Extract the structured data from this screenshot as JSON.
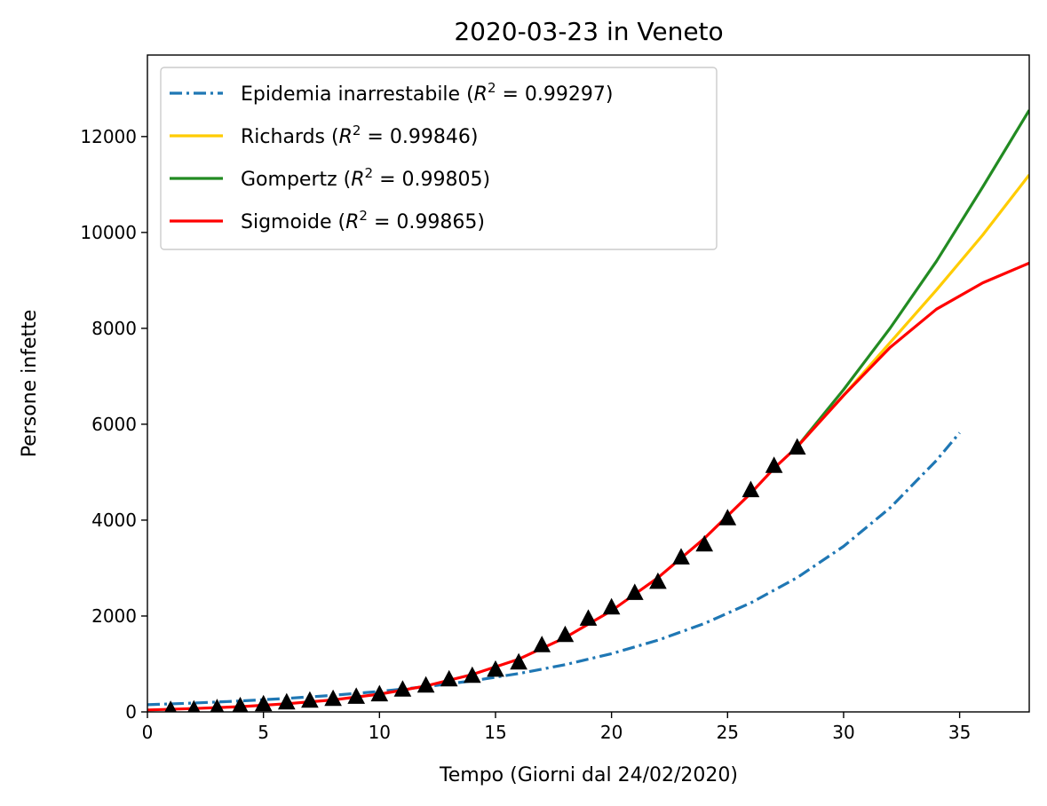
{
  "chart_data": {
    "type": "line",
    "title": "2020-03-23 in Veneto",
    "xlabel": "Tempo (Giorni dal 24/02/2020)",
    "ylabel": "Persone infette",
    "xlim": [
      0,
      38
    ],
    "ylim": [
      0,
      13700
    ],
    "xticks": [
      0,
      5,
      10,
      15,
      20,
      25,
      30,
      35
    ],
    "yticks": [
      0,
      2000,
      4000,
      6000,
      8000,
      10000,
      12000
    ],
    "grid": false,
    "legend_position": "top-left",
    "series": [
      {
        "name_main": "Epidemia inarrestabile (",
        "name_r2": "0.99297",
        "color": "#1f77b4",
        "style": "dashdot",
        "x": [
          0,
          2,
          4,
          6,
          8,
          10,
          12,
          14,
          16,
          18,
          20,
          22,
          24,
          26,
          28,
          30,
          32,
          34,
          35
        ],
        "y": [
          150,
          185,
          228,
          281,
          346,
          427,
          526,
          648,
          799,
          985,
          1214,
          1496,
          1844,
          2273,
          2801,
          3453,
          4255,
          5245,
          5823
        ]
      },
      {
        "name_main": "Richards (",
        "name_r2": "0.99846",
        "color": "#ffcc00",
        "style": "solid",
        "x": [
          28,
          30,
          32,
          34,
          36,
          38
        ],
        "y": [
          5530,
          6600,
          7700,
          8800,
          9950,
          11200
        ]
      },
      {
        "name_main": "Gompertz (",
        "name_r2": "0.99805",
        "color": "#228b22",
        "style": "solid",
        "x": [
          28,
          30,
          32,
          34,
          36,
          38
        ],
        "y": [
          5530,
          6720,
          8000,
          9400,
          10950,
          12550
        ]
      },
      {
        "name_main": "Sigmoide (",
        "name_r2": "0.99865",
        "color": "#ff0000",
        "style": "solid",
        "x": [
          0,
          2,
          4,
          6,
          8,
          10,
          12,
          14,
          16,
          18,
          20,
          22,
          24,
          26,
          27,
          28,
          30,
          32,
          34,
          36,
          38
        ],
        "y": [
          40,
          70,
          110,
          170,
          250,
          370,
          540,
          780,
          1100,
          1550,
          2110,
          2800,
          3620,
          4560,
          5080,
          5530,
          6600,
          7600,
          8400,
          8950,
          9360
        ]
      }
    ],
    "observed": {
      "marker": "triangle",
      "color": "#000000",
      "x": [
        1,
        2,
        3,
        4,
        5,
        6,
        7,
        8,
        9,
        10,
        11,
        12,
        13,
        14,
        15,
        16,
        17,
        18,
        19,
        20,
        21,
        22,
        23,
        24,
        25,
        26,
        27,
        28
      ],
      "y": [
        33,
        43,
        71,
        111,
        151,
        191,
        228,
        263,
        307,
        360,
        458,
        543,
        670,
        744,
        872,
        1023,
        1384,
        1595,
        1937,
        2172,
        2473,
        2704,
        3214,
        3484,
        4031,
        4617,
        5122,
        5505
      ]
    }
  }
}
